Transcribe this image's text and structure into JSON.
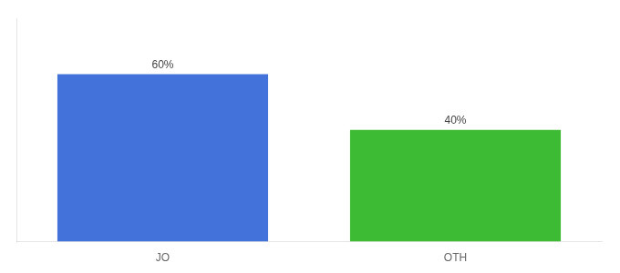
{
  "chart_data": {
    "type": "bar",
    "categories": [
      "JO",
      "OTH"
    ],
    "values": [
      60,
      40
    ],
    "value_labels": [
      "60%",
      "40%"
    ],
    "colors": [
      "#4472db",
      "#3dbb35"
    ],
    "data_labels": true,
    "ylim": [
      0,
      80
    ],
    "tick_labels": "x",
    "grid": false
  }
}
